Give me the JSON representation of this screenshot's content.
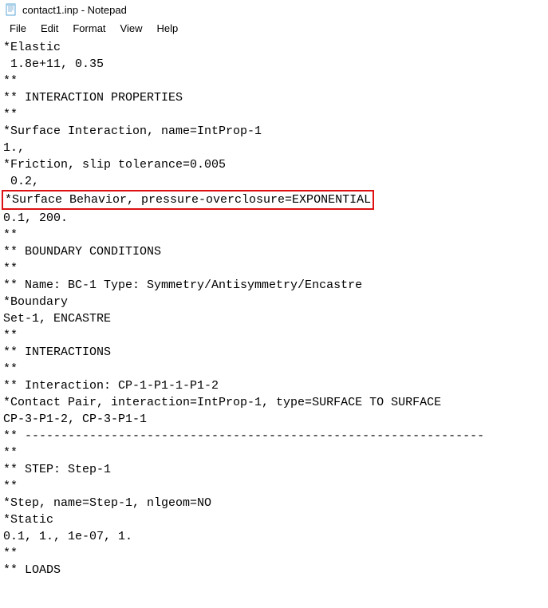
{
  "window": {
    "title": "contact1.inp - Notepad"
  },
  "menu": {
    "file": "File",
    "edit": "Edit",
    "format": "Format",
    "view": "View",
    "help": "Help"
  },
  "editor": {
    "lines": [
      "*Elastic",
      " 1.8e+11, 0.35",
      "**",
      "** INTERACTION PROPERTIES",
      "**",
      "*Surface Interaction, name=IntProp-1",
      "1.,",
      "*Friction, slip tolerance=0.005",
      " 0.2,",
      "*Surface Behavior, pressure-overclosure=EXPONENTIAL",
      "0.1, 200.",
      "**",
      "** BOUNDARY CONDITIONS",
      "**",
      "** Name: BC-1 Type: Symmetry/Antisymmetry/Encastre",
      "*Boundary",
      "Set-1, ENCASTRE",
      "**",
      "** INTERACTIONS",
      "**",
      "** Interaction: CP-1-P1-1-P1-2",
      "*Contact Pair, interaction=IntProp-1, type=SURFACE TO SURFACE",
      "CP-3-P1-2, CP-3-P1-1",
      "** ----------------------------------------------------------------",
      "**",
      "** STEP: Step-1",
      "**",
      "*Step, name=Step-1, nlgeom=NO",
      "*Static",
      "0.1, 1., 1e-07, 1.",
      "**",
      "** LOADS"
    ],
    "highlighted_line_index": 9
  },
  "colors": {
    "highlight_border": "#dd1111",
    "text": "#000000",
    "background": "#ffffff"
  }
}
